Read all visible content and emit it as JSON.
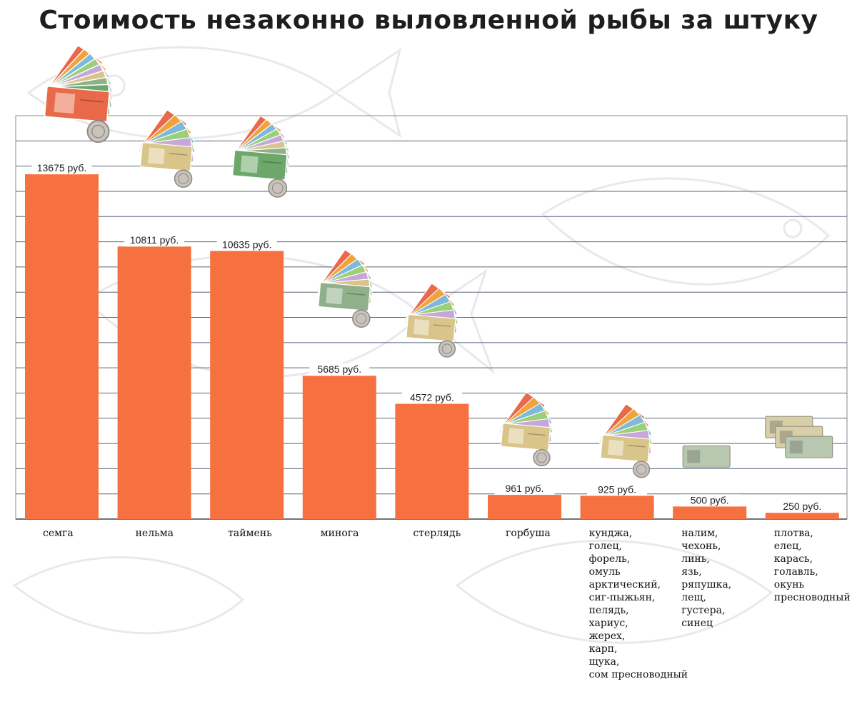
{
  "title": "Стоимость незаконно выловленной рыбы за штуку",
  "colors": {
    "bar": "#f7703f",
    "grid": "#5a6678",
    "label_text": "#222222"
  },
  "chart_data": {
    "type": "bar",
    "title": "Стоимость незаконно выловленной рыбы за штуку",
    "xlabel": "",
    "ylabel": "",
    "ylim": [
      0,
      16000
    ],
    "grid": true,
    "categories": [
      "семга",
      "нельма",
      "таймень",
      "минога",
      "стерлядь",
      "горбуша",
      "кунджа,\nголец,\nфорель,\nомуль\nарктический,\nсиг-пыжьян,\nпелядь,\nхариус,\nжерех,\nкарп,\nщука,\nсом пресноводный",
      "налим,\nчехонь,\nлинь,\nязь,\nряпушка,\nлещ,\nгустера,\nсинец",
      "плотва,\nелец,\nкарась,\nголавль,\nокунь\nпресноводный"
    ],
    "values": [
      13675,
      10811,
      10635,
      5685,
      4572,
      961,
      925,
      500,
      250
    ],
    "data_labels": [
      "13675 руб.",
      "10811 руб.",
      "10635 руб.",
      "5685 руб.",
      "4572 руб.",
      "961 руб.",
      "925 руб.",
      "500 руб.",
      "250 руб."
    ]
  }
}
